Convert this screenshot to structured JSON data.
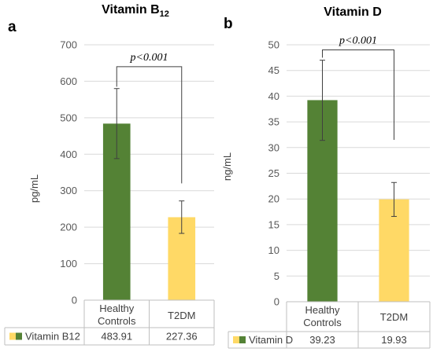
{
  "chart_data": [
    {
      "type": "bar",
      "panel_label": "a",
      "title_main": "Vitamin B",
      "title_sub": "12",
      "ylabel": "pg/mL",
      "ylim": [
        0,
        700
      ],
      "ytick_step": 100,
      "grid": true,
      "categories": [
        "Healthy Controls",
        "T2DM"
      ],
      "category_lines": [
        [
          "Healthy",
          "Controls"
        ],
        [
          "T2DM"
        ]
      ],
      "series": [
        {
          "name": "Vitamin B12",
          "values": [
            483.91,
            227.36
          ],
          "value_labels": [
            "483.91",
            "227.36"
          ],
          "error_low": [
            388,
            183
          ],
          "error_high": [
            580,
            272
          ],
          "colors": [
            "#548235",
            "#ffd966"
          ]
        }
      ],
      "annotation": {
        "text": "p<0.001",
        "y": 640,
        "left_end": 585,
        "right_end": 320
      }
    },
    {
      "type": "bar",
      "panel_label": "b",
      "title_main": "Vitamin D",
      "title_sub": "",
      "ylabel": "ng/mL",
      "ylim": [
        0,
        50
      ],
      "ytick_step": 5,
      "grid": true,
      "categories": [
        "Healthy Controls",
        "T2DM"
      ],
      "category_lines": [
        [
          "Healthy",
          "Controls"
        ],
        [
          "T2DM"
        ]
      ],
      "series": [
        {
          "name": "Vitamin D",
          "values": [
            39.23,
            19.93
          ],
          "value_labels": [
            "39.23",
            "19.93"
          ],
          "error_low": [
            31.4,
            16.6
          ],
          "error_high": [
            47,
            23.2
          ],
          "colors": [
            "#548235",
            "#ffd966"
          ]
        }
      ],
      "annotation": {
        "text": "p<0.001",
        "y": 49,
        "left_end": 47.5,
        "right_end": 31.5
      }
    }
  ],
  "colors": {
    "healthy": "#548235",
    "t2dm": "#ffd966"
  }
}
